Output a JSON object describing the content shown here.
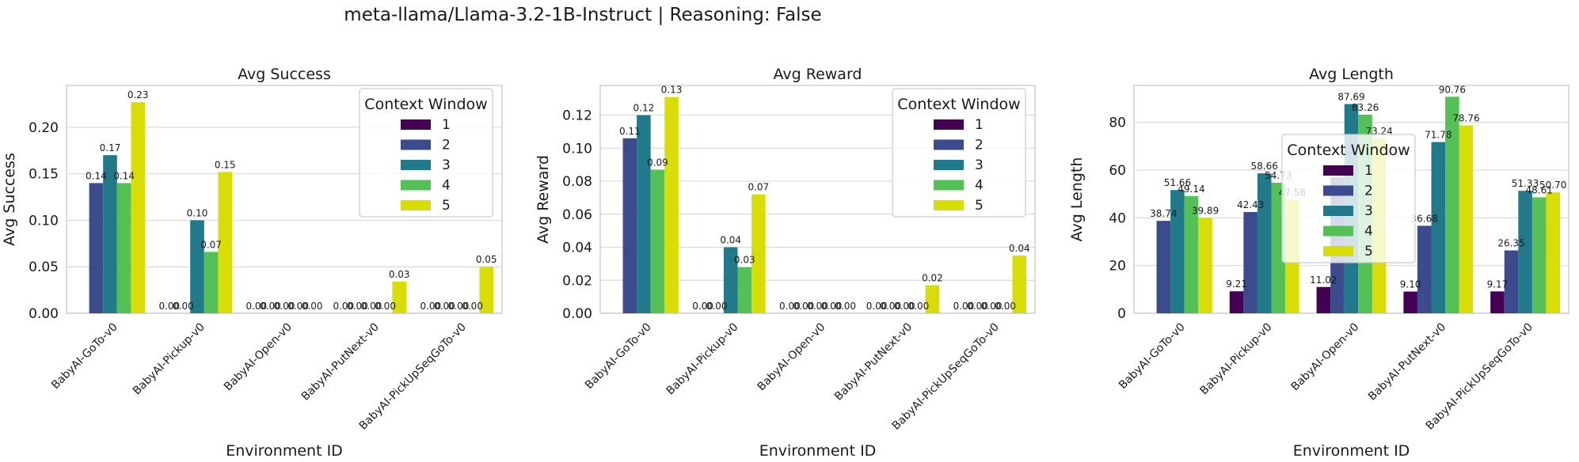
{
  "figure": {
    "title": "meta-llama/Llama-3.2-1B-Instruct | Reasoning: False"
  },
  "colors": [
    "#440154",
    "#3b4b8c",
    "#21798a",
    "#54c055",
    "#d9dd06"
  ],
  "chart_data": [
    {
      "type": "bar",
      "title": "Avg Success",
      "xlabel": "Environment ID",
      "ylabel": "Avg Success",
      "ylim": [
        0,
        0.245
      ],
      "yticks": [
        "0.00",
        "0.05",
        "0.10",
        "0.15",
        "0.20"
      ],
      "grid": true,
      "legend": {
        "title": "Context Window",
        "placement": "top-right"
      },
      "categories": [
        "BabyAI-GoTo-v0",
        "BabyAI-Pickup-v0",
        "BabyAI-Open-v0",
        "BabyAI-PutNext-v0",
        "BabyAI-PickUpSeqGoTo-v0"
      ],
      "series": [
        {
          "name": "1",
          "values": [
            null,
            0.0,
            0.0,
            0.0,
            0.0
          ],
          "labels": [
            "",
            "0.00",
            "0.00",
            "0.00",
            "0.00"
          ]
        },
        {
          "name": "2",
          "values": [
            0.14,
            0.0,
            0.0,
            0.0,
            0.0
          ],
          "labels": [
            "0.14",
            "0.00",
            "0.00",
            "0.00",
            "0.00"
          ]
        },
        {
          "name": "3",
          "values": [
            0.17,
            0.1,
            0.0,
            0.0,
            0.0
          ],
          "labels": [
            "0.17",
            "0.10",
            "0.00",
            "0.00",
            "0.00"
          ]
        },
        {
          "name": "4",
          "values": [
            0.14,
            0.066,
            0.0,
            0.0,
            0.0
          ],
          "labels": [
            "0.14",
            "0.07",
            "0.00",
            "0.00",
            "0.00"
          ]
        },
        {
          "name": "5",
          "values": [
            0.227,
            0.152,
            0.0,
            0.034,
            0.05
          ],
          "labels": [
            "0.23",
            "0.15",
            "0.00",
            "0.03",
            "0.05"
          ]
        }
      ]
    },
    {
      "type": "bar",
      "title": "Avg Reward",
      "xlabel": "Environment ID",
      "ylabel": "Avg Reward",
      "ylim": [
        0,
        0.138
      ],
      "yticks": [
        "0.00",
        "0.02",
        "0.04",
        "0.06",
        "0.08",
        "0.10",
        "0.12"
      ],
      "grid": true,
      "legend": {
        "title": "Context Window",
        "placement": "top-right"
      },
      "categories": [
        "BabyAI-GoTo-v0",
        "BabyAI-Pickup-v0",
        "BabyAI-Open-v0",
        "BabyAI-PutNext-v0",
        "BabyAI-PickUpSeqGoTo-v0"
      ],
      "series": [
        {
          "name": "1",
          "values": [
            null,
            0.0,
            0.0,
            0.0,
            0.0
          ],
          "labels": [
            "",
            "0.00",
            "0.00",
            "0.00",
            "0.00"
          ]
        },
        {
          "name": "2",
          "values": [
            0.106,
            0.0,
            0.0,
            0.0,
            0.0
          ],
          "labels": [
            "0.11",
            "0.00",
            "0.00",
            "0.00",
            "0.00"
          ]
        },
        {
          "name": "3",
          "values": [
            0.12,
            0.04,
            0.0,
            0.0,
            0.0
          ],
          "labels": [
            "0.12",
            "0.04",
            "0.00",
            "0.00",
            "0.00"
          ]
        },
        {
          "name": "4",
          "values": [
            0.087,
            0.028,
            0.0,
            0.0,
            0.0
          ],
          "labels": [
            "0.09",
            "0.03",
            "0.00",
            "0.00",
            "0.00"
          ]
        },
        {
          "name": "5",
          "values": [
            0.131,
            0.072,
            0.0,
            0.017,
            0.035
          ],
          "labels": [
            "0.13",
            "0.07",
            "0.00",
            "0.02",
            "0.04"
          ]
        }
      ]
    },
    {
      "type": "bar",
      "title": "Avg Length",
      "xlabel": "Environment ID",
      "ylabel": "Avg Length",
      "ylim": [
        0,
        95.5
      ],
      "yticks": [
        "0",
        "20",
        "40",
        "60",
        "80"
      ],
      "grid": true,
      "legend": {
        "title": "Context Window",
        "placement": "center"
      },
      "categories": [
        "BabyAI-GoTo-v0",
        "BabyAI-Pickup-v0",
        "BabyAI-Open-v0",
        "BabyAI-PutNext-v0",
        "BabyAI-PickUpSeqGoTo-v0"
      ],
      "series": [
        {
          "name": "1",
          "values": [
            null,
            9.21,
            11.02,
            9.1,
            9.17
          ],
          "labels": [
            "",
            "9.21",
            "11.02",
            "9.10",
            "9.17"
          ]
        },
        {
          "name": "2",
          "values": [
            38.74,
            42.43,
            57.0,
            36.68,
            26.35
          ],
          "labels": [
            "38.74",
            "42.43",
            "",
            "36.68",
            "26.35"
          ]
        },
        {
          "name": "3",
          "values": [
            51.66,
            58.66,
            87.69,
            71.78,
            51.33
          ],
          "labels": [
            "51.66",
            "58.66",
            "87.69",
            "71.78",
            "51.33"
          ]
        },
        {
          "name": "4",
          "values": [
            49.14,
            54.73,
            83.26,
            90.76,
            48.61
          ],
          "labels": [
            "49.14",
            "54.73",
            "83.26",
            "90.76",
            "48.61"
          ]
        },
        {
          "name": "5",
          "values": [
            39.89,
            47.58,
            73.24,
            78.76,
            50.7
          ],
          "labels": [
            "39.89",
            "47.58",
            "73.24",
            "78.76",
            "50.70"
          ]
        }
      ]
    }
  ]
}
